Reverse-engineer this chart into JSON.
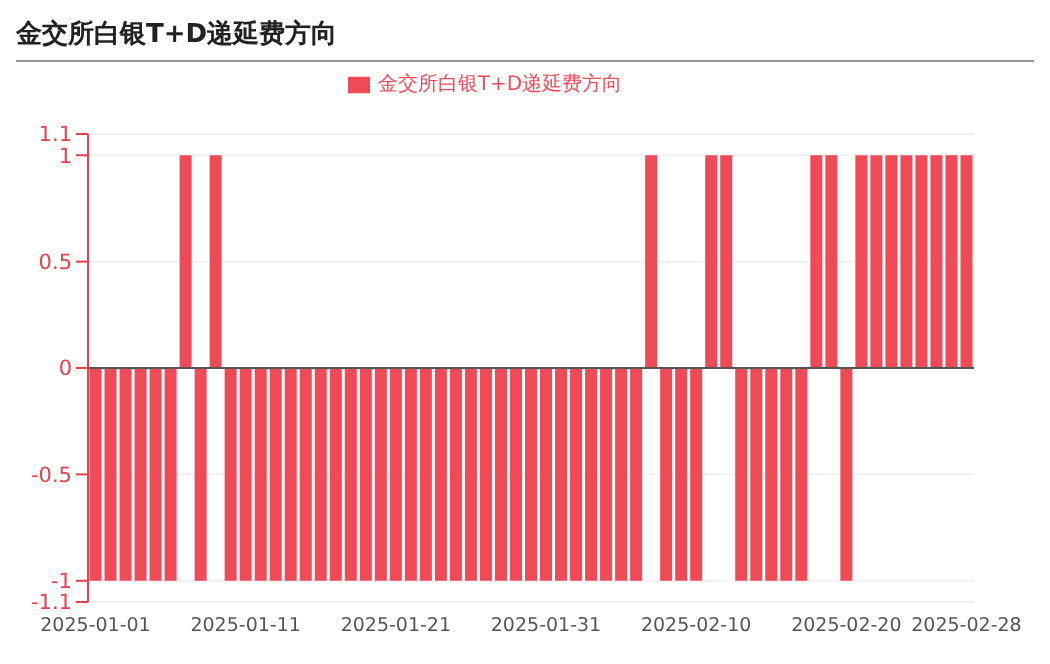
{
  "chart_data": {
    "type": "bar",
    "title": "金交所白银T+D递延费方向",
    "categories": [
      "2025-01-01",
      null,
      null,
      null,
      null,
      null,
      null,
      null,
      null,
      null,
      "2025-01-11",
      null,
      null,
      null,
      null,
      null,
      null,
      null,
      null,
      null,
      "2025-01-21",
      null,
      null,
      null,
      null,
      null,
      null,
      null,
      null,
      null,
      "2025-01-31",
      null,
      null,
      null,
      null,
      null,
      null,
      null,
      null,
      null,
      "2025-02-10",
      null,
      null,
      null,
      null,
      null,
      null,
      null,
      null,
      null,
      "2025-02-20",
      null,
      null,
      null,
      null,
      null,
      null,
      null,
      "2025-02-28"
    ],
    "series": [
      {
        "name": "金交所白银T+D递延费方向",
        "color": "#ef4a55",
        "values": [
          -1,
          -1,
          -1,
          -1,
          -1,
          -1,
          1,
          -1,
          1,
          -1,
          -1,
          -1,
          -1,
          -1,
          -1,
          -1,
          -1,
          -1,
          -1,
          -1,
          -1,
          -1,
          -1,
          -1,
          -1,
          -1,
          -1,
          -1,
          -1,
          -1,
          -1,
          -1,
          -1,
          -1,
          -1,
          -1,
          -1,
          1,
          -1,
          -1,
          -1,
          1,
          1,
          -1,
          -1,
          -1,
          -1,
          -1,
          1,
          1,
          -1,
          1,
          1,
          1,
          1,
          1,
          1,
          1,
          1
        ]
      }
    ],
    "ylim": [
      -1.1,
      1.1
    ],
    "yticks": [
      -1.1,
      -1,
      -0.5,
      0,
      0.5,
      1,
      1.1
    ],
    "grid": "y",
    "legend": "top"
  }
}
